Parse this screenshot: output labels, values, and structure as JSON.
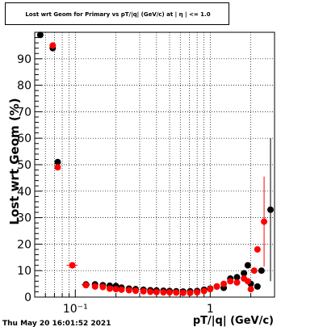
{
  "title": "Lost wrt Geom for Primary vs pT/|q| (GeV/c) at | η | <= 1.0",
  "timestamp": "Thu May 20 16:01:52 2021",
  "chart_data": {
    "type": "scatter",
    "xlabel": "pT/|q| (GeV/c)",
    "ylabel": "Lost wrt Geom (%)",
    "xscale": "log",
    "xlim": [
      0.05,
      3.0
    ],
    "ylim": [
      0,
      100
    ],
    "xticks": [
      {
        "value": 0.1,
        "label": "10⁻¹"
      },
      {
        "value": 1,
        "label": "1"
      }
    ],
    "yticks": [
      0,
      10,
      20,
      30,
      40,
      50,
      60,
      70,
      80,
      90
    ],
    "grid": true,
    "colors": {
      "black_series": "#000000",
      "red_series": "#ff0000"
    },
    "series": [
      {
        "color": "black",
        "points": [
          {
            "x": 0.055,
            "y": 99
          },
          {
            "x": 0.068,
            "y": 94
          },
          {
            "x": 0.074,
            "y": 51
          },
          {
            "x": 0.12,
            "y": 4.8,
            "xerr": 0.008
          },
          {
            "x": 0.14,
            "y": 4.8
          },
          {
            "x": 0.16,
            "y": 4.5
          },
          {
            "x": 0.18,
            "y": 4.3
          },
          {
            "x": 0.2,
            "y": 4.2
          },
          {
            "x": 0.22,
            "y": 3.6
          },
          {
            "x": 0.25,
            "y": 3.2
          },
          {
            "x": 0.28,
            "y": 3.0
          },
          {
            "x": 0.32,
            "y": 2.8
          },
          {
            "x": 0.36,
            "y": 2.6
          },
          {
            "x": 0.4,
            "y": 2.5
          },
          {
            "x": 0.45,
            "y": 2.4
          },
          {
            "x": 0.5,
            "y": 2.3
          },
          {
            "x": 0.56,
            "y": 2.2
          },
          {
            "x": 0.63,
            "y": 2.1
          },
          {
            "x": 0.71,
            "y": 2.2
          },
          {
            "x": 0.8,
            "y": 2.3
          },
          {
            "x": 0.9,
            "y": 2.8
          },
          {
            "x": 1.0,
            "y": 3.2
          },
          {
            "x": 1.12,
            "y": 4.0
          },
          {
            "x": 1.26,
            "y": 3.5
          },
          {
            "x": 1.41,
            "y": 7.0
          },
          {
            "x": 1.58,
            "y": 7.5
          },
          {
            "x": 1.78,
            "y": 9.0
          },
          {
            "x": 1.9,
            "y": 12.0
          },
          {
            "x": 2.0,
            "y": 5.0
          },
          {
            "x": 2.24,
            "y": 4.0
          },
          {
            "x": 2.4,
            "y": 10.0
          },
          {
            "x": 2.8,
            "y": 33.0,
            "yerr": 27
          }
        ]
      },
      {
        "color": "red",
        "points": [
          {
            "x": 0.068,
            "y": 95
          },
          {
            "x": 0.074,
            "y": 49
          },
          {
            "x": 0.095,
            "y": 12,
            "xerr": 0.009
          },
          {
            "x": 0.12,
            "y": 4.5,
            "xerr": 0.008
          },
          {
            "x": 0.14,
            "y": 4.0
          },
          {
            "x": 0.16,
            "y": 3.8
          },
          {
            "x": 0.18,
            "y": 3.2
          },
          {
            "x": 0.2,
            "y": 3.0
          },
          {
            "x": 0.22,
            "y": 2.8
          },
          {
            "x": 0.25,
            "y": 2.6
          },
          {
            "x": 0.28,
            "y": 2.4
          },
          {
            "x": 0.32,
            "y": 2.2
          },
          {
            "x": 0.36,
            "y": 2.0
          },
          {
            "x": 0.4,
            "y": 1.9
          },
          {
            "x": 0.45,
            "y": 1.8
          },
          {
            "x": 0.5,
            "y": 1.8
          },
          {
            "x": 0.56,
            "y": 1.7
          },
          {
            "x": 0.63,
            "y": 1.6
          },
          {
            "x": 0.71,
            "y": 1.6
          },
          {
            "x": 0.8,
            "y": 1.8
          },
          {
            "x": 0.9,
            "y": 2.3
          },
          {
            "x": 1.0,
            "y": 3.0
          },
          {
            "x": 1.12,
            "y": 4.0
          },
          {
            "x": 1.26,
            "y": 5.0
          },
          {
            "x": 1.41,
            "y": 6.0
          },
          {
            "x": 1.58,
            "y": 5.5
          },
          {
            "x": 1.78,
            "y": 7.0
          },
          {
            "x": 1.9,
            "y": 6.0
          },
          {
            "x": 2.0,
            "y": 3.0
          },
          {
            "x": 2.12,
            "y": 10.0
          },
          {
            "x": 2.24,
            "y": 18.0
          },
          {
            "x": 2.51,
            "y": 28.5,
            "yerr": 17
          }
        ]
      }
    ]
  }
}
